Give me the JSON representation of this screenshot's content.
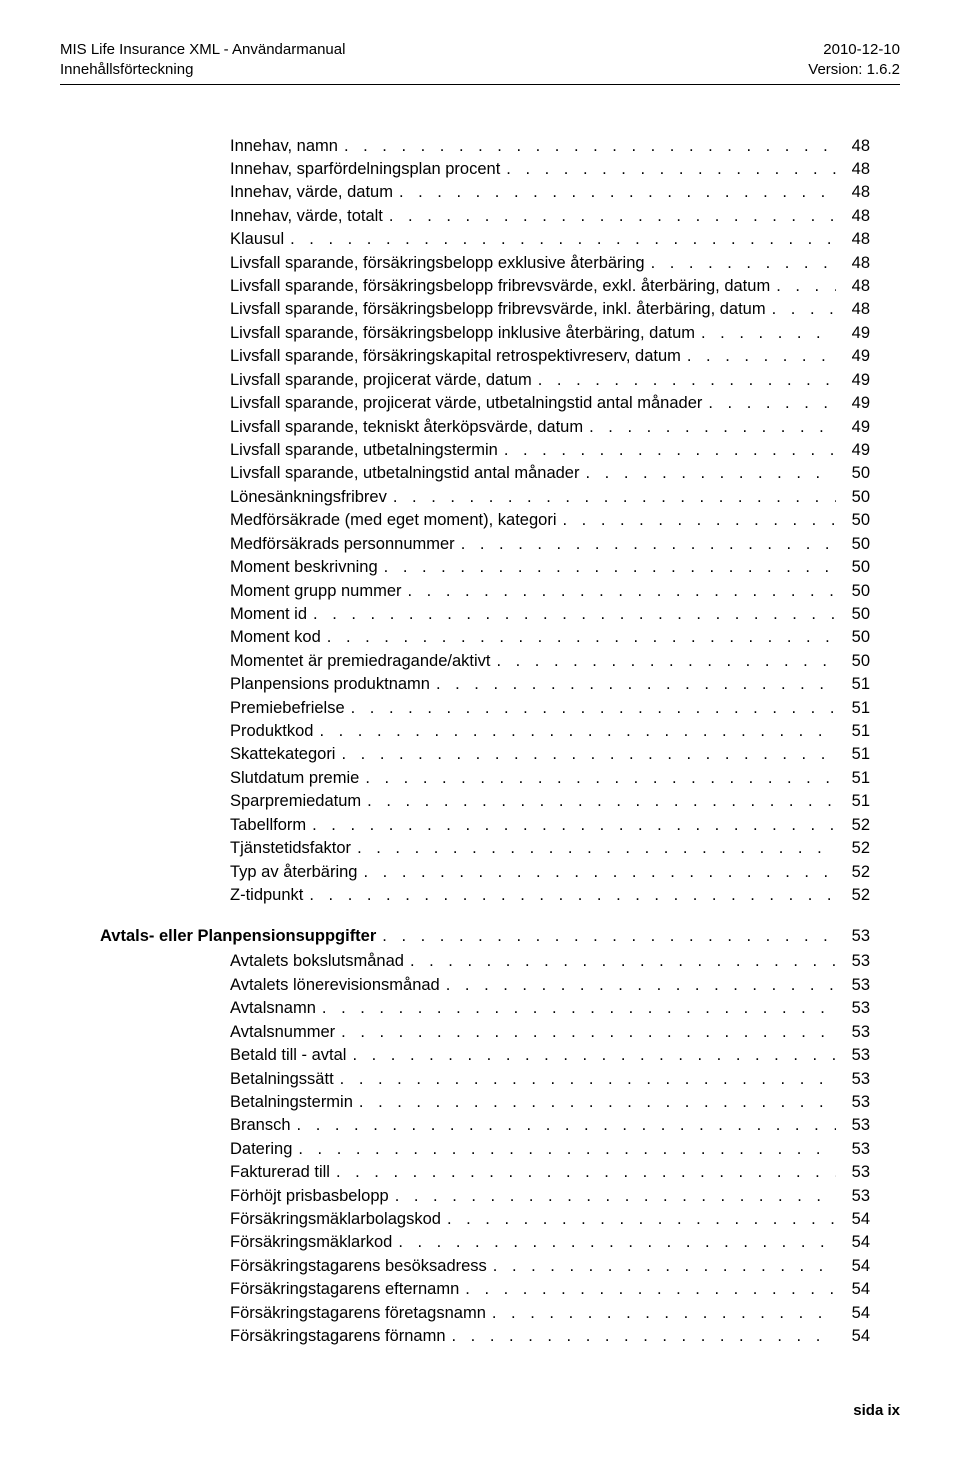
{
  "header": {
    "left1": "MIS Life Insurance XML - Användarmanual",
    "left2": "Innehållsförteckning",
    "right1": "2010-12-10",
    "right2": "Version: 1.6.2"
  },
  "toc_group1_indent": 170,
  "toc_group1": [
    {
      "label": "Innehav, namn",
      "page": "48"
    },
    {
      "label": "Innehav, sparfördelningsplan procent",
      "page": "48"
    },
    {
      "label": "Innehav, värde, datum",
      "page": "48"
    },
    {
      "label": "Innehav, värde, totalt",
      "page": "48"
    },
    {
      "label": "Klausul",
      "page": "48"
    },
    {
      "label": "Livsfall sparande, försäkringsbelopp exklusive återbäring",
      "page": "48"
    },
    {
      "label": "Livsfall sparande, försäkringsbelopp fribrevsvärde, exkl. återbäring, datum",
      "page": "48"
    },
    {
      "label": "Livsfall sparande, försäkringsbelopp fribrevsvärde, inkl. återbäring, datum",
      "page": "48"
    },
    {
      "label": "Livsfall sparande, försäkringsbelopp inklusive återbäring, datum",
      "page": "49"
    },
    {
      "label": "Livsfall sparande, försäkringskapital retrospektivreserv, datum",
      "page": "49"
    },
    {
      "label": "Livsfall sparande, projicerat värde, datum",
      "page": "49"
    },
    {
      "label": "Livsfall sparande, projicerat värde, utbetalningstid antal månader",
      "page": "49"
    },
    {
      "label": "Livsfall sparande, tekniskt återköpsvärde, datum",
      "page": "49"
    },
    {
      "label": "Livsfall sparande, utbetalningstermin",
      "page": "49"
    },
    {
      "label": "Livsfall sparande, utbetalningstid antal månader",
      "page": "50"
    },
    {
      "label": "Lönesänkningsfribrev",
      "page": "50"
    },
    {
      "label": "Medförsäkrade (med eget moment), kategori",
      "page": "50"
    },
    {
      "label": "Medförsäkrads personnummer",
      "page": "50"
    },
    {
      "label": "Moment beskrivning",
      "page": "50"
    },
    {
      "label": "Moment grupp nummer",
      "page": "50"
    },
    {
      "label": "Moment id",
      "page": "50"
    },
    {
      "label": "Moment kod",
      "page": "50"
    },
    {
      "label": "Momentet är premiedragande/aktivt",
      "page": "50"
    },
    {
      "label": "Planpensions produktnamn",
      "page": "51"
    },
    {
      "label": "Premiebefrielse",
      "page": "51"
    },
    {
      "label": "Produktkod",
      "page": "51"
    },
    {
      "label": "Skattekategori",
      "page": "51"
    },
    {
      "label": "Slutdatum premie",
      "page": "51"
    },
    {
      "label": "Sparpremiedatum",
      "page": "51"
    },
    {
      "label": "Tabellform",
      "page": "52"
    },
    {
      "label": "Tjänstetidsfaktor",
      "page": "52"
    },
    {
      "label": "Typ av återbäring",
      "page": "52"
    },
    {
      "label": "Z-tidpunkt",
      "page": "52"
    }
  ],
  "section2": {
    "title": "Avtals- eller Planpensionsuppgifter",
    "page": "53"
  },
  "toc_group2": [
    {
      "label": "Avtalets bokslutsmånad",
      "page": "53"
    },
    {
      "label": "Avtalets lönerevisionsmånad",
      "page": "53"
    },
    {
      "label": "Avtalsnamn",
      "page": "53"
    },
    {
      "label": "Avtalsnummer",
      "page": "53"
    },
    {
      "label": "Betald till - avtal",
      "page": "53"
    },
    {
      "label": "Betalningssätt",
      "page": "53"
    },
    {
      "label": "Betalningstermin",
      "page": "53"
    },
    {
      "label": "Bransch",
      "page": "53"
    },
    {
      "label": "Datering",
      "page": "53"
    },
    {
      "label": "Fakturerad till",
      "page": "53"
    },
    {
      "label": "Förhöjt prisbasbelopp",
      "page": "53"
    },
    {
      "label": "Försäkringsmäklarbolagskod",
      "page": "54"
    },
    {
      "label": "Försäkringsmäklarkod",
      "page": "54"
    },
    {
      "label": "Försäkringstagarens besöksadress",
      "page": "54"
    },
    {
      "label": "Försäkringstagarens efternamn",
      "page": "54"
    },
    {
      "label": "Försäkringstagarens företagsnamn",
      "page": "54"
    },
    {
      "label": "Försäkringstagarens förnamn",
      "page": "54"
    }
  ],
  "footer": "sida  ix"
}
